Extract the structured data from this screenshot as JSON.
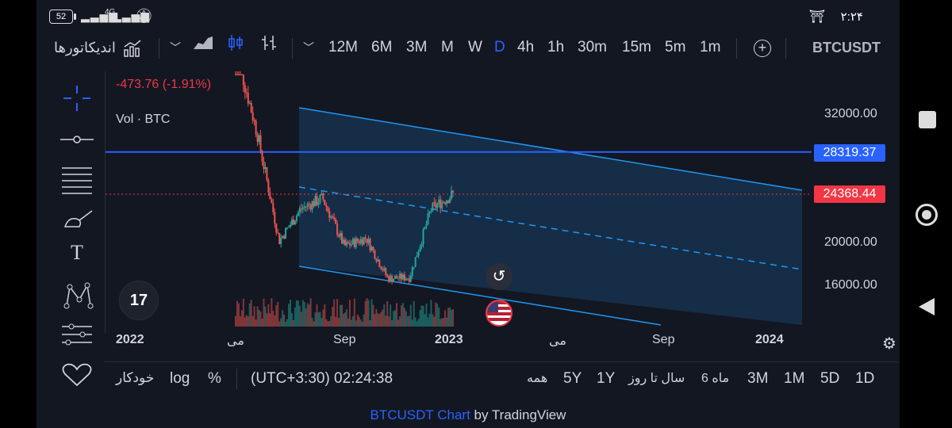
{
  "status_bar": {
    "battery": "52",
    "network": "4G",
    "clock": "۲:۲۴",
    "icons": [
      "battery-icon",
      "signal-icon",
      "mute-icon",
      "vpn-icon"
    ]
  },
  "toolbar": {
    "indicators_label": "اندیکاتورها",
    "timeframes": [
      "12M",
      "6M",
      "3M",
      "M",
      "W",
      "D",
      "4h",
      "1h",
      "30m",
      "15m",
      "5m",
      "1m"
    ],
    "active_timeframe": "D",
    "symbol": "BTCUSDT"
  },
  "legend": {
    "change": "-473.76 (-1.91%)",
    "volume_label": "Vol · BTC"
  },
  "price_axis": {
    "ticks": [
      "32000.00",
      "20000.00",
      "16000.00"
    ],
    "line_level_label": "28319.37",
    "last_price_label": "24368.44"
  },
  "time_axis": {
    "labels": [
      "2022",
      "می",
      "Sep",
      "2023",
      "می",
      "Sep",
      "2024"
    ]
  },
  "bottom_bar": {
    "ranges": [
      "1D",
      "5D",
      "1M",
      "3M",
      "6 ماه",
      "سال تا روز",
      "1Y",
      "5Y",
      "همه"
    ],
    "timezone": "(UTC+3:30) 02:24:38",
    "percent": "%",
    "log": "log",
    "auto": "خودکار"
  },
  "caption": {
    "symbol_link": "BTCUSDT Chart",
    "suffix": "by TradingView"
  },
  "chart_data": {
    "type": "candlestick",
    "symbol": "BTCUSDT",
    "interval": "D",
    "ylabel": "",
    "y_ticks": [
      32000,
      20000,
      16000
    ],
    "horizontal_line": 28319.37,
    "last_price": 24368.44,
    "change": -473.76,
    "change_pct": -1.91,
    "series": [
      {
        "x": "2022-05",
        "close": 30000
      },
      {
        "x": "2022-06",
        "close": 20000
      },
      {
        "x": "2022-07",
        "close": 23000
      },
      {
        "x": "2022-08",
        "close": 24000
      },
      {
        "x": "2022-09",
        "close": 19500
      },
      {
        "x": "2022-10",
        "close": 20300
      },
      {
        "x": "2022-11",
        "close": 16500
      },
      {
        "x": "2022-12",
        "close": 16600
      },
      {
        "x": "2023-01",
        "close": 23000
      },
      {
        "x": "2023-02",
        "close": 24368
      }
    ],
    "colors": {
      "up": "#26a69a",
      "down": "#ef5350",
      "channel": "#2196f3",
      "hline": "#2962ff"
    }
  }
}
